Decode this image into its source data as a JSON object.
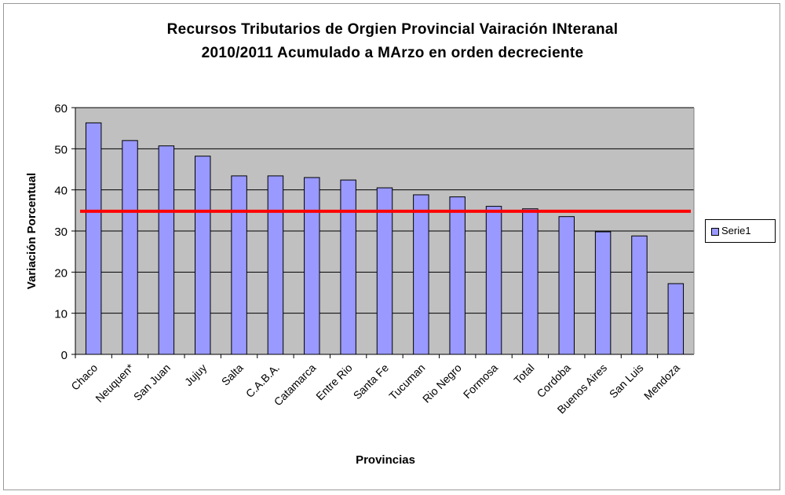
{
  "chart_data": {
    "type": "bar",
    "title_line1": "Recursos Tributarios de Orgien Provincial Vairación INteranal",
    "title_line2": "2010/2011 Acumulado a MArzo en orden decreciente",
    "xlabel": "Provincias",
    "ylabel": "Variación Porcentual",
    "ylim": [
      0,
      60
    ],
    "yticks": [
      0,
      10,
      20,
      30,
      40,
      50,
      60
    ],
    "grid": true,
    "legend_position": "right",
    "categories": [
      "Chaco",
      "Neuquen*",
      "San Juan",
      "Jujuy",
      "Salta",
      "C.A.B.A.",
      "Catamarca",
      "Entre Rio",
      "Santa Fe",
      "Tucuman",
      "Rio Negro",
      "Formosa",
      "Total",
      "Cordoba",
      "Buenos Aires",
      "San Luis",
      "Mendoza"
    ],
    "series": [
      {
        "name": "Serie1",
        "values": [
          56.3,
          52.0,
          50.7,
          48.2,
          43.4,
          43.4,
          43.0,
          42.4,
          40.5,
          38.8,
          38.3,
          36.0,
          35.4,
          33.5,
          29.8,
          28.8,
          17.2
        ]
      }
    ],
    "reference_line": 34.8,
    "colors": {
      "bar_fill": "#9999ff",
      "bar_stroke": "#000000",
      "plot_background": "#c0c0c0",
      "gridline": "#000000",
      "reference_line": "#ff0000"
    }
  }
}
